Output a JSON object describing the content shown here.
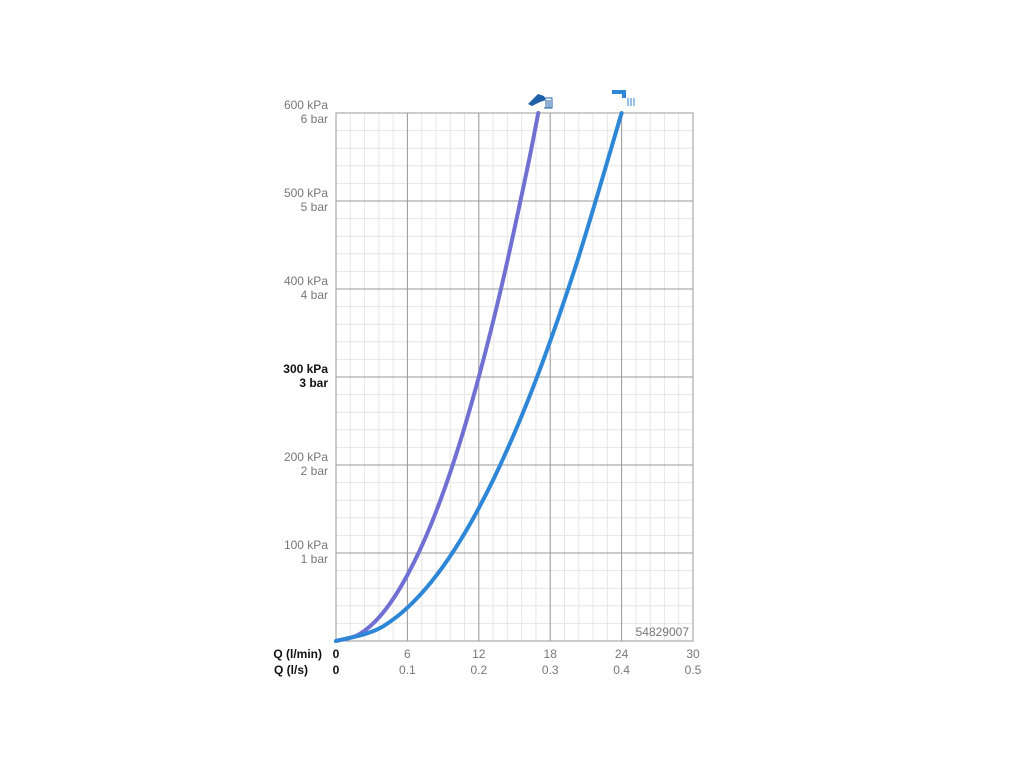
{
  "chart_data": {
    "type": "line",
    "x_label": "Q (l/min)",
    "x2_label": "Q (l/s)",
    "annotation": "54829007",
    "xlim": [
      0,
      30
    ],
    "xticks": [
      0,
      6,
      12,
      18,
      24,
      30
    ],
    "x2ticks": [
      0,
      0.1,
      0.2,
      0.3,
      0.4,
      0.5
    ],
    "ylim": [
      0,
      600
    ],
    "yticks": [
      {
        "value": 100,
        "label": "100 kPa"
      },
      {
        "value": 200,
        "label": "200 kPa"
      },
      {
        "value": 300,
        "label": "300 kPa"
      },
      {
        "value": 400,
        "label": "400 kPa"
      },
      {
        "value": 500,
        "label": "500 kPa"
      },
      {
        "value": 600,
        "label": "600 kPa"
      }
    ],
    "ytick_bar_labels": [
      "1 bar",
      "2 bar",
      "3 bar",
      "4 bar",
      "5 bar",
      "6 bar"
    ],
    "highlight_ytick": 300,
    "grid": true,
    "minor_divisions": 5,
    "series": [
      {
        "color": "#6f70d2",
        "x": [
          0,
          2,
          4,
          6,
          8,
          10,
          12,
          14,
          16,
          17
        ],
        "values": [
          0,
          8,
          33,
          75,
          133,
          208,
          300,
          408,
          532,
          600
        ]
      },
      {
        "color": "#2e86d6",
        "x": [
          0,
          4,
          8,
          12,
          16,
          20,
          24
        ],
        "values": [
          0,
          17,
          67,
          151,
          269,
          420,
          600
        ]
      }
    ]
  }
}
